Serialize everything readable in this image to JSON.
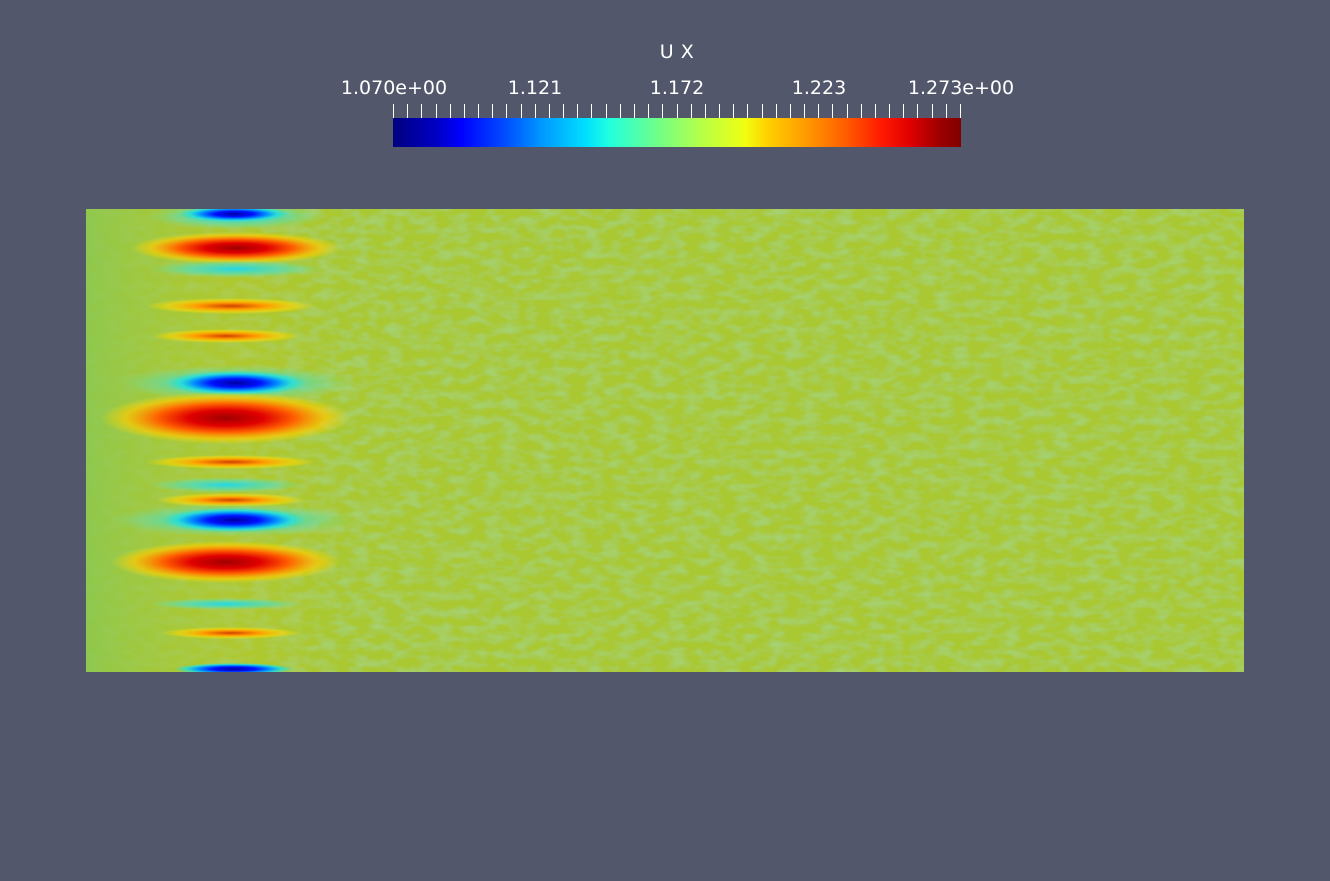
{
  "colorbar": {
    "title": "U X",
    "labels": [
      "1.070e+00",
      "1.121",
      "1.172",
      "1.223",
      "1.273e+00"
    ],
    "colormap": "jet",
    "background_color": "#52576b"
  },
  "field": {
    "variable": "U X",
    "dominant_color": "#a9c832",
    "bands_color_names": [
      "blue",
      "red",
      "cyan",
      "yellow"
    ]
  }
}
